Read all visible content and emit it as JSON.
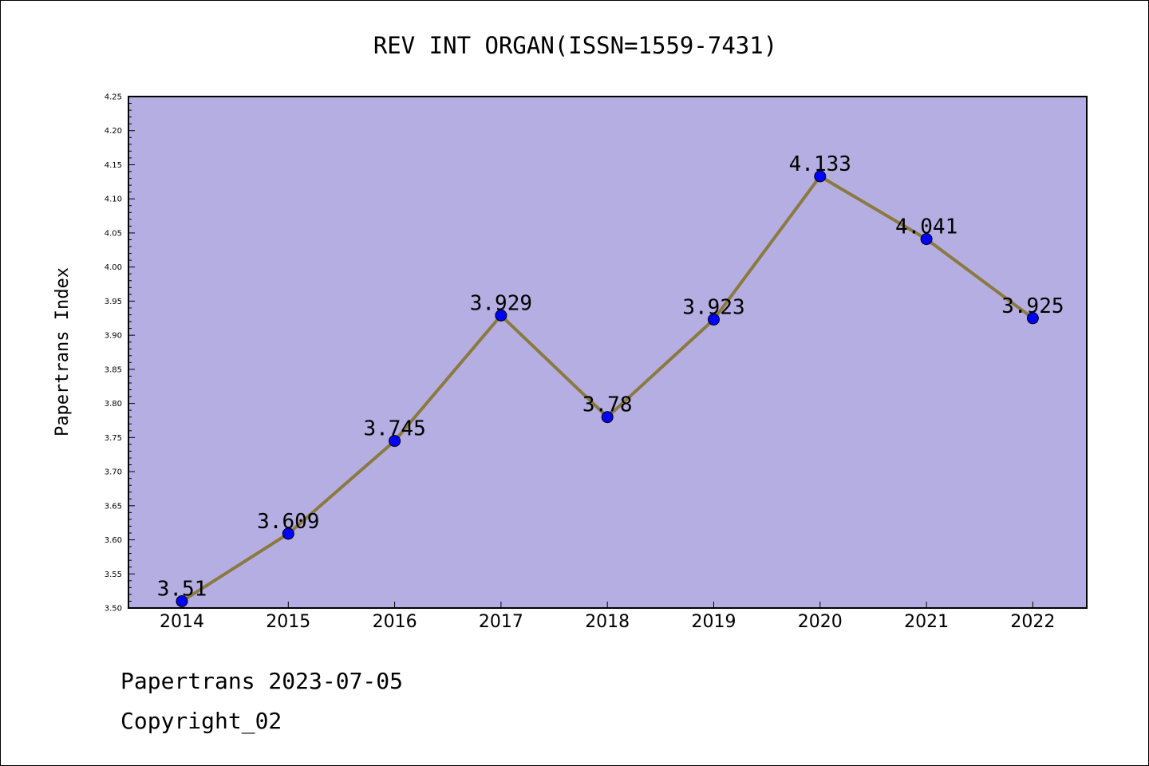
{
  "chart_data": {
    "type": "line",
    "title": "REV INT ORGAN(ISSN=1559-7431)",
    "xlabel": "",
    "ylabel": "Papertrans Index",
    "categories": [
      "2014",
      "2015",
      "2016",
      "2017",
      "2018",
      "2019",
      "2020",
      "2021",
      "2022"
    ],
    "series": [
      {
        "values": [
          3.51,
          3.609,
          3.745,
          3.929,
          3.78,
          3.923,
          4.133,
          4.041,
          3.925
        ],
        "labels": [
          "3.51",
          "3.609",
          "3.745",
          "3.929",
          "3.78",
          "3.923",
          "4.133",
          "4.041",
          "3.925"
        ]
      }
    ],
    "ylim": [
      3.5,
      4.25
    ],
    "yticks": [
      "3.50",
      "3.55",
      "3.60",
      "3.65",
      "3.70",
      "3.75",
      "3.80",
      "3.85",
      "3.90",
      "3.95",
      "4.00",
      "4.05",
      "4.10",
      "4.15",
      "4.20",
      "4.25"
    ],
    "grid": false,
    "colors": {
      "plot_background": "#b5aee2",
      "line": "#8b7a3f",
      "marker": "#0000ff"
    }
  },
  "footer": {
    "line1": "Papertrans 2023-07-05",
    "line2": "Copyright_02"
  }
}
